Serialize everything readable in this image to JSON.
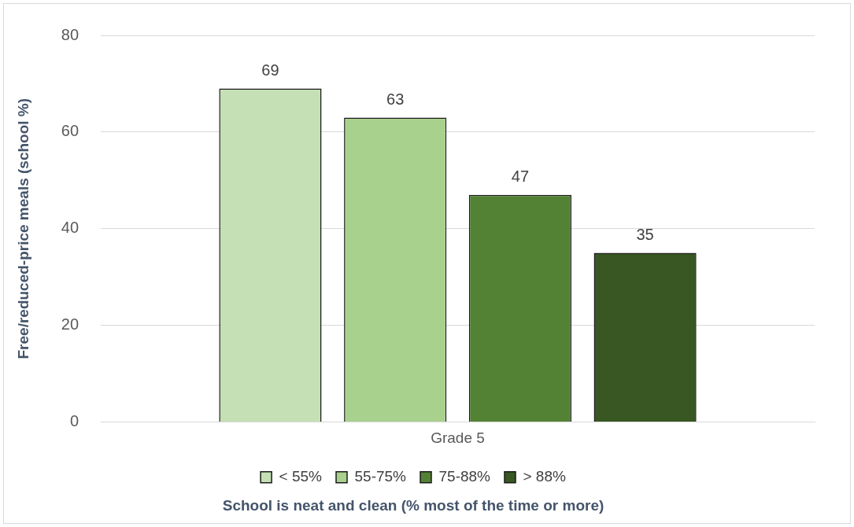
{
  "chart_data": {
    "type": "bar",
    "categories": [
      "Grade 5"
    ],
    "series": [
      {
        "name": "< 55%",
        "color": "#c5e0b4",
        "values": [
          69
        ]
      },
      {
        "name": "55-75%",
        "color": "#a9d18e",
        "values": [
          63
        ]
      },
      {
        "name": "75-88%",
        "color": "#548235",
        "values": [
          47
        ]
      },
      {
        "name": "> 88%",
        "color": "#385723",
        "values": [
          35
        ]
      }
    ],
    "ylabel": "Free/reduced-price meals (school %)",
    "xlabel": "School is neat and clean (% most of the time or more)",
    "ylim": [
      0,
      80
    ],
    "yticks": [
      0,
      20,
      40,
      60,
      80
    ],
    "grid": "y",
    "legend": "bottom",
    "data_labels": true
  }
}
